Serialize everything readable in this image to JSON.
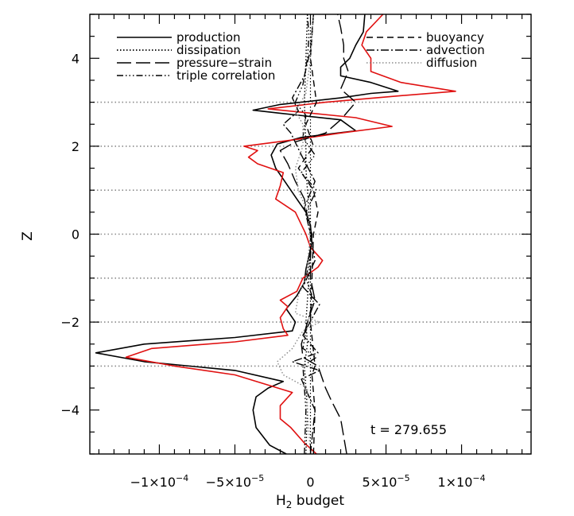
{
  "chart_data": {
    "type": "line",
    "title": "",
    "xlabel_main": "H",
    "xlabel_sub": "2",
    "xlabel_rest": " budget",
    "ylabel": "Z",
    "xlim": [
      -0.000146,
      0.000146
    ],
    "ylim": [
      -5,
      5
    ],
    "x_ticks": [
      {
        "value": -0.0001,
        "label": "−1×10",
        "exp": "−4"
      },
      {
        "value": -5e-05,
        "label": "−5×10",
        "exp": "−5"
      },
      {
        "value": 0,
        "label": "0",
        "exp": ""
      },
      {
        "value": 5e-05,
        "label": "5×10",
        "exp": "−5"
      },
      {
        "value": 0.0001,
        "label": "1×10",
        "exp": "−4"
      }
    ],
    "y_ticks": [
      {
        "value": 4,
        "label": "4"
      },
      {
        "value": 2,
        "label": "2"
      },
      {
        "value": 0,
        "label": "0"
      },
      {
        "value": -2,
        "label": "−2"
      },
      {
        "value": -4,
        "label": "−4"
      }
    ],
    "hlines": [
      3,
      2,
      1,
      0,
      -1,
      -2,
      -3
    ],
    "annotation": "t  =  279.655",
    "legend": {
      "left": [
        {
          "label": "production",
          "style": "solid"
        },
        {
          "label": "dissipation",
          "style": "dotted"
        },
        {
          "label": "pressure−strain",
          "style": "longdash"
        },
        {
          "label": "triple correlation",
          "style": "dashdotdotdot"
        }
      ],
      "right": [
        {
          "label": "buoyancy",
          "style": "dashed"
        },
        {
          "label": "advection",
          "style": "dashdot"
        },
        {
          "label": "diffusion",
          "style": "greydotted"
        }
      ]
    },
    "series": [
      {
        "name": "production",
        "style": "solid",
        "color": "#000000",
        "points": [
          [
            -1.6e-05,
            -5.0
          ],
          [
            -2.7e-05,
            -4.8
          ],
          [
            -3.6e-05,
            -4.4
          ],
          [
            -3.8e-05,
            -4.0
          ],
          [
            -3.6e-05,
            -3.7
          ],
          [
            -2.8e-05,
            -3.5
          ],
          [
            -1.8e-05,
            -3.35
          ],
          [
            -5e-05,
            -3.1
          ],
          [
            -0.00011,
            -2.9
          ],
          [
            -0.000142,
            -2.7
          ],
          [
            -0.00011,
            -2.5
          ],
          [
            -5e-05,
            -2.35
          ],
          [
            -1.2e-05,
            -2.2
          ],
          [
            -1e-05,
            -2.0
          ],
          [
            -1.6e-05,
            -1.7
          ],
          [
            -9e-06,
            -1.4
          ],
          [
            -4e-06,
            -1.1
          ],
          [
            -3e-06,
            -0.8
          ],
          [
            -1e-06,
            -0.5
          ],
          [
            1e-06,
            -0.2
          ],
          [
            0,
            0.2
          ],
          [
            -3e-06,
            0.5
          ],
          [
            -9e-06,
            0.8
          ],
          [
            -1.5e-05,
            1.1
          ],
          [
            -1.9e-05,
            1.3
          ],
          [
            -2.3e-05,
            1.5
          ],
          [
            -2.6e-05,
            1.8
          ],
          [
            -2.2e-05,
            2.05
          ],
          [
            -6e-06,
            2.2
          ],
          [
            3e-05,
            2.35
          ],
          [
            2e-05,
            2.6
          ],
          [
            -2e-05,
            2.75
          ],
          [
            -3.8e-05,
            2.82
          ],
          [
            -2e-05,
            2.95
          ],
          [
            2e-05,
            3.1
          ],
          [
            4e-05,
            3.2
          ],
          [
            5.8e-05,
            3.25
          ],
          [
            4e-05,
            3.45
          ],
          [
            2e-05,
            3.6
          ],
          [
            2e-05,
            3.8
          ],
          [
            2.6e-05,
            4.0
          ],
          [
            3e-05,
            4.3
          ],
          [
            3.5e-05,
            4.6
          ],
          [
            3.6e-05,
            5.0
          ]
        ]
      },
      {
        "name": "production (red)",
        "style": "solid",
        "color": "#e01010",
        "points": [
          [
            4e-06,
            -5.0
          ],
          [
            -4e-06,
            -4.75
          ],
          [
            -1.3e-05,
            -4.4
          ],
          [
            -2e-05,
            -4.2
          ],
          [
            -2e-05,
            -3.9
          ],
          [
            -1.2e-05,
            -3.6
          ],
          [
            -5e-05,
            -3.2
          ],
          [
            -9e-05,
            -3.0
          ],
          [
            -0.000122,
            -2.8
          ],
          [
            -0.000105,
            -2.6
          ],
          [
            -5e-05,
            -2.45
          ],
          [
            -1.5e-05,
            -2.3
          ],
          [
            -1.8e-05,
            -2.15
          ],
          [
            -2e-05,
            -1.9
          ],
          [
            -1.5e-05,
            -1.65
          ],
          [
            -2e-05,
            -1.5
          ],
          [
            -9e-06,
            -1.3
          ],
          [
            -5e-06,
            -1.0
          ],
          [
            5e-06,
            -0.75
          ],
          [
            8e-06,
            -0.6
          ],
          [
            0,
            -0.3
          ],
          [
            -3e-06,
            0.0
          ],
          [
            -1e-05,
            0.5
          ],
          [
            -2.3e-05,
            0.8
          ],
          [
            -2e-05,
            1.1
          ],
          [
            -1.8e-05,
            1.4
          ],
          [
            -3.5e-05,
            1.6
          ],
          [
            -4.1e-05,
            1.75
          ],
          [
            -3.5e-05,
            1.9
          ],
          [
            -4.4e-05,
            2.0
          ],
          [
            -1e-05,
            2.15
          ],
          [
            2e-05,
            2.3
          ],
          [
            5.4e-05,
            2.45
          ],
          [
            3e-05,
            2.65
          ],
          [
            -2.8e-05,
            2.85
          ],
          [
            1e-05,
            3.0
          ],
          [
            6e-05,
            3.15
          ],
          [
            9.6e-05,
            3.25
          ],
          [
            6e-05,
            3.45
          ],
          [
            4e-05,
            3.7
          ],
          [
            4e-05,
            4.0
          ],
          [
            3.4e-05,
            4.3
          ],
          [
            3.7e-05,
            4.6
          ],
          [
            4.8e-05,
            5.0
          ]
        ]
      },
      {
        "name": "dissipation",
        "style": "dotted",
        "color": "#000000",
        "points": [
          [
            -3e-06,
            -5.0
          ],
          [
            -2e-06,
            -4.0
          ],
          [
            -4e-06,
            -3.0
          ],
          [
            -2e-06,
            -2.5
          ],
          [
            -3e-06,
            -2.0
          ],
          [
            -1e-06,
            -1.0
          ],
          [
            0,
            0.0
          ],
          [
            -2e-06,
            1.0
          ],
          [
            -3e-06,
            1.5
          ],
          [
            -3e-06,
            2.0
          ],
          [
            -4e-06,
            3.0
          ],
          [
            -3e-06,
            4.0
          ],
          [
            -2e-06,
            5.0
          ]
        ]
      },
      {
        "name": "pressure−strain",
        "style": "longdash",
        "color": "#000000",
        "points": [
          [
            2.4e-05,
            -5.0
          ],
          [
            2.2e-05,
            -4.6
          ],
          [
            2e-05,
            -4.2
          ],
          [
            1.4e-05,
            -3.8
          ],
          [
            1e-05,
            -3.5
          ],
          [
            5e-06,
            -3.0
          ],
          [
            -5e-06,
            -2.8
          ],
          [
            -6e-06,
            -2.5
          ],
          [
            -2e-06,
            -2.0
          ],
          [
            3e-06,
            -1.5
          ],
          [
            0,
            -1.0
          ],
          [
            0,
            0.0
          ],
          [
            -4e-06,
            0.8
          ],
          [
            -1e-05,
            1.2
          ],
          [
            -1.5e-05,
            1.6
          ],
          [
            -2e-05,
            1.9
          ],
          [
            -1e-05,
            2.1
          ],
          [
            1e-05,
            2.3
          ],
          [
            2e-05,
            2.6
          ],
          [
            3e-05,
            3.0
          ],
          [
            2e-05,
            3.3
          ],
          [
            2.5e-05,
            3.7
          ],
          [
            2.2e-05,
            4.0
          ],
          [
            2.2e-05,
            4.3
          ],
          [
            2e-05,
            4.7
          ],
          [
            1.8e-05,
            5.0
          ]
        ]
      },
      {
        "name": "triple correlation",
        "style": "dashdotdotdot",
        "color": "#000000",
        "points": [
          [
            -4e-06,
            -5.0
          ],
          [
            -3e-06,
            -4.0
          ],
          [
            -5e-06,
            -3.0
          ],
          [
            4e-06,
            -2.8
          ],
          [
            -5e-06,
            -2.6
          ],
          [
            -2e-06,
            -2.0
          ],
          [
            2e-06,
            -1.5
          ],
          [
            -3e-06,
            -1.0
          ],
          [
            0,
            -0.5
          ],
          [
            1e-06,
            0.0
          ],
          [
            -3e-06,
            0.5
          ],
          [
            4e-06,
            1.0
          ],
          [
            -6e-06,
            1.4
          ],
          [
            3e-06,
            1.8
          ],
          [
            -5e-06,
            2.2
          ],
          [
            -3e-06,
            2.7
          ],
          [
            -1e-05,
            3.0
          ],
          [
            -5e-06,
            3.4
          ],
          [
            -2e-06,
            4.0
          ],
          [
            -1e-06,
            4.5
          ],
          [
            -2e-06,
            5.0
          ]
        ]
      },
      {
        "name": "buoyancy",
        "style": "dashed",
        "color": "#000000",
        "points": [
          [
            2e-06,
            -5.0
          ],
          [
            3e-06,
            -4.0
          ],
          [
            1e-06,
            -3.2
          ],
          [
            3e-06,
            -3.0
          ],
          [
            0,
            -2.0
          ],
          [
            1e-06,
            -1.0
          ],
          [
            2e-06,
            0.0
          ],
          [
            5e-06,
            0.5
          ],
          [
            2e-06,
            1.0
          ],
          [
            -8e-06,
            1.5
          ],
          [
            2e-06,
            2.0
          ],
          [
            -3e-06,
            2.5
          ],
          [
            4e-06,
            3.0
          ],
          [
            0,
            4.0
          ],
          [
            2e-06,
            5.0
          ]
        ]
      },
      {
        "name": "advection",
        "style": "dashdot",
        "color": "#000000",
        "points": [
          [
            0,
            -5.0
          ],
          [
            3e-06,
            -4.0
          ],
          [
            -6e-06,
            -3.3
          ],
          [
            6e-06,
            -3.1
          ],
          [
            -1.2e-05,
            -2.9
          ],
          [
            5e-06,
            -2.7
          ],
          [
            -5e-06,
            -2.3
          ],
          [
            6e-06,
            -1.6
          ],
          [
            -5e-06,
            -1.2
          ],
          [
            3e-06,
            -0.6
          ],
          [
            0,
            0.0
          ],
          [
            -4e-06,
            0.6
          ],
          [
            3e-06,
            1.2
          ],
          [
            -6e-06,
            1.8
          ],
          [
            -1.3e-05,
            2.3
          ],
          [
            -1.8e-05,
            2.5
          ],
          [
            -8e-06,
            2.8
          ],
          [
            -1.2e-05,
            3.1
          ],
          [
            -4e-06,
            3.6
          ],
          [
            0,
            4.2
          ],
          [
            2e-06,
            5.0
          ]
        ]
      },
      {
        "name": "diffusion",
        "style": "greydotted",
        "color": "#8a8a8a",
        "points": [
          [
            0,
            -5.0
          ],
          [
            -2e-06,
            -4.0
          ],
          [
            -2e-06,
            -3.5
          ],
          [
            -1.8e-05,
            -3.2
          ],
          [
            -2.2e-05,
            -2.9
          ],
          [
            -1.2e-05,
            -2.6
          ],
          [
            -5e-06,
            -2.2
          ],
          [
            6e-06,
            -2.0
          ],
          [
            -1e-05,
            -1.8
          ],
          [
            -8e-06,
            -1.4
          ],
          [
            -3e-06,
            -1.0
          ],
          [
            0,
            0.0
          ],
          [
            -2e-06,
            0.5
          ],
          [
            -8e-06,
            1.0
          ],
          [
            -1e-05,
            1.5
          ],
          [
            -5e-06,
            2.0
          ],
          [
            -5e-06,
            2.5
          ],
          [
            -1e-05,
            2.8
          ],
          [
            -3e-06,
            3.2
          ],
          [
            0,
            4.0
          ],
          [
            2e-06,
            5.0
          ]
        ]
      }
    ]
  }
}
